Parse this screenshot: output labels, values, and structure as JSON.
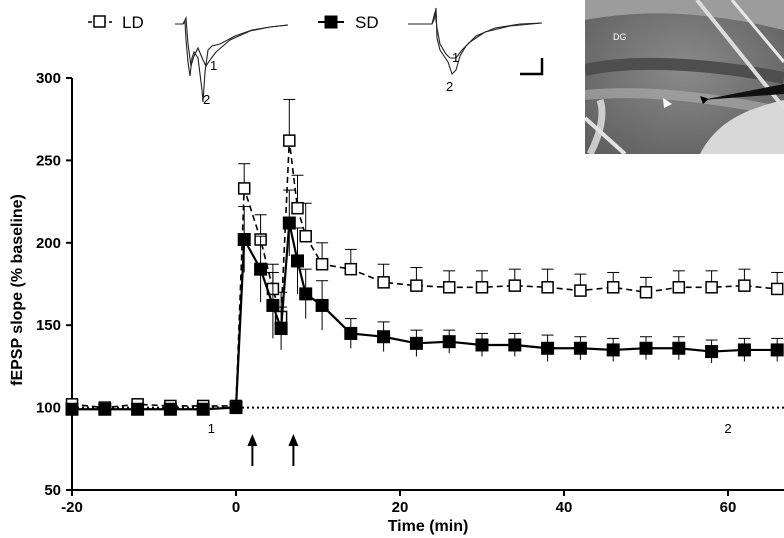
{
  "chart_data": {
    "type": "line",
    "title": "",
    "xlabel": "Time (min)",
    "ylabel": "fEPSP slope  (% baseline)",
    "xlim": [
      -20,
      66
    ],
    "ylim": [
      50,
      300
    ],
    "xticks": [
      -20,
      0,
      20,
      40,
      60
    ],
    "yticks": [
      50,
      100,
      150,
      200,
      250,
      300
    ],
    "baseline": 100,
    "stimulus_arrows_x": [
      2,
      7
    ],
    "timepoint_markers": [
      {
        "x": -3,
        "label": "1"
      },
      {
        "x": 60,
        "label": "2"
      }
    ],
    "legend": [
      "LD",
      "SD"
    ],
    "series": [
      {
        "name": "LD",
        "marker": "open-square",
        "linestyle": "dashed",
        "x": [
          -20,
          -16,
          -12,
          -8,
          -4,
          0,
          1,
          3,
          4.5,
          5.5,
          6.5,
          7.5,
          8.5,
          10.5,
          14,
          18,
          22,
          26,
          30,
          34,
          38,
          42,
          46,
          50,
          54,
          58,
          62,
          66
        ],
        "y": [
          102,
          100,
          102,
          101,
          101,
          101,
          233,
          202,
          172,
          155,
          262,
          221,
          204,
          187,
          184,
          176,
          174,
          173,
          173,
          174,
          173,
          171,
          173,
          170,
          173,
          173,
          174,
          172
        ],
        "err": [
          3,
          3,
          3,
          3,
          3,
          3,
          15,
          15,
          15,
          15,
          25,
          20,
          20,
          13,
          12,
          11,
          11,
          10,
          10,
          10,
          11,
          10,
          9,
          9,
          10,
          10,
          10,
          10
        ]
      },
      {
        "name": "SD",
        "marker": "filled-square",
        "linestyle": "solid",
        "x": [
          -20,
          -16,
          -12,
          -8,
          -4,
          0,
          1,
          3,
          4.5,
          5.5,
          6.5,
          7.5,
          8.5,
          10.5,
          14,
          18,
          22,
          26,
          30,
          34,
          38,
          42,
          46,
          50,
          54,
          58,
          62,
          66
        ],
        "y": [
          99,
          99,
          99,
          99,
          99,
          100,
          202,
          184,
          162,
          148,
          212,
          189,
          169,
          162,
          145,
          143,
          139,
          140,
          138,
          138,
          136,
          136,
          135,
          136,
          136,
          134,
          135,
          135
        ],
        "err": [
          3,
          3,
          3,
          3,
          3,
          3,
          20,
          20,
          20,
          13,
          20,
          20,
          15,
          15,
          9,
          9,
          8,
          7,
          7,
          7,
          8,
          7,
          7,
          7,
          7,
          7,
          7,
          7
        ]
      }
    ],
    "insets": {
      "trace_labels": [
        "1",
        "2"
      ],
      "image_label": "DG"
    }
  }
}
